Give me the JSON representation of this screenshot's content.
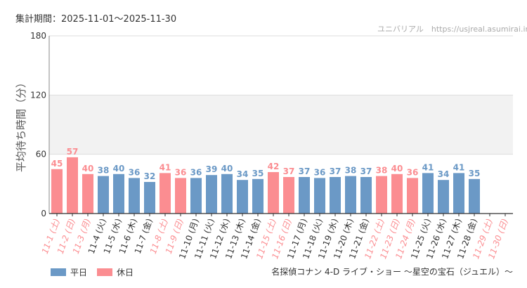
{
  "header": {
    "period": "集計期間：2025-11-01～2025-11-30",
    "credit": "ユニバリアル　https://usjreal.asumirai.info"
  },
  "legend": {
    "weekday": "平日",
    "holiday": "休日"
  },
  "footer": {
    "attraction": "名探偵コナン 4-D ライブ・ショー ～星空の宝石（ジュエル）～"
  },
  "colors": {
    "weekday": "#6b99c6",
    "holiday": "#fb8d91",
    "grid": "#dddddd",
    "band": "#f2f2f2",
    "axis": "#333333"
  },
  "chart_data": {
    "type": "bar",
    "ylabel": "平均待ち時間（分）",
    "ylim": [
      0,
      180
    ],
    "yticks": [
      0,
      60,
      120,
      180
    ],
    "highlight_band": [
      60,
      120
    ],
    "categories": [
      "11-1 (土)",
      "11-2 (日)",
      "11-3 (月)",
      "11-4 (火)",
      "11-5 (水)",
      "11-6 (木)",
      "11-7 (金)",
      "11-8 (土)",
      "11-9 (日)",
      "11-10 (月)",
      "11-11 (火)",
      "11-12 (水)",
      "11-13 (木)",
      "11-14 (金)",
      "11-15 (土)",
      "11-16 (日)",
      "11-17 (月)",
      "11-18 (火)",
      "11-19 (水)",
      "11-20 (木)",
      "11-21 (金)",
      "11-22 (土)",
      "11-23 (日)",
      "11-24 (月)",
      "11-25 (火)",
      "11-26 (水)",
      "11-27 (木)",
      "11-28 (金)",
      "11-29 (土)",
      "11-30 (日)"
    ],
    "values": [
      45,
      57,
      40,
      38,
      40,
      36,
      32,
      41,
      36,
      36,
      39,
      40,
      34,
      35,
      42,
      37,
      37,
      36,
      37,
      38,
      37,
      38,
      40,
      36,
      41,
      34,
      41,
      35,
      null,
      null
    ],
    "day_type": [
      "holiday",
      "holiday",
      "holiday",
      "weekday",
      "weekday",
      "weekday",
      "weekday",
      "holiday",
      "holiday",
      "weekday",
      "weekday",
      "weekday",
      "weekday",
      "weekday",
      "holiday",
      "holiday",
      "weekday",
      "weekday",
      "weekday",
      "weekday",
      "weekday",
      "holiday",
      "holiday",
      "holiday",
      "weekday",
      "weekday",
      "weekday",
      "weekday",
      "holiday",
      "holiday"
    ]
  }
}
